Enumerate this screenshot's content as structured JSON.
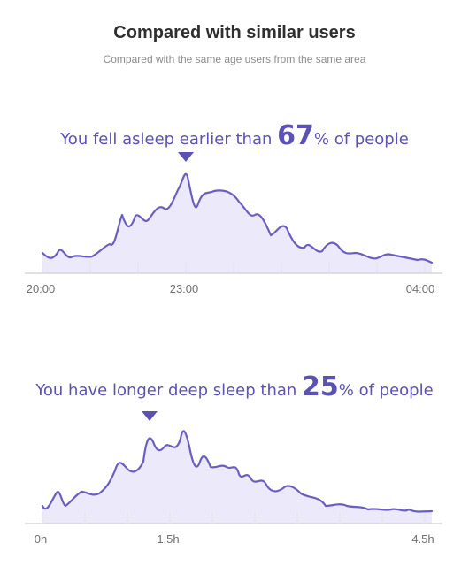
{
  "header": {
    "title": "Compared with similar users",
    "subtitle": "Compared with the same age users from the same area"
  },
  "colors": {
    "accent": "#5c52b3",
    "line": "#6a5fc1",
    "fill": "#ece9fa"
  },
  "sections": [
    {
      "text_before": "You fell asleep earlier than ",
      "value": "67",
      "text_after": "% of people"
    },
    {
      "text_before": "You have longer deep sleep than ",
      "value": "25",
      "text_after": "% of people"
    }
  ],
  "chart_data": [
    {
      "type": "area",
      "title": "",
      "xlabel": "",
      "ylabel": "",
      "x_tick_labels": [
        "20:00",
        "23:00",
        "04:00"
      ],
      "marker_label": "23:00",
      "grid": false
    },
    {
      "type": "area",
      "title": "",
      "xlabel": "",
      "ylabel": "",
      "x_tick_labels": [
        "0h",
        "1.5h",
        "4.5h"
      ],
      "marker_label": "1.5h",
      "grid": false
    }
  ]
}
